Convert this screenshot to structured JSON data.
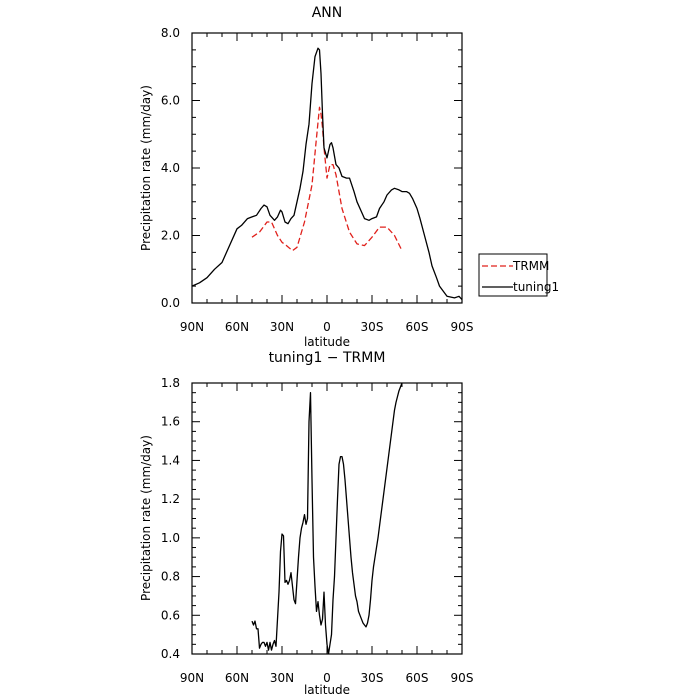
{
  "chart_data": [
    {
      "type": "line",
      "title": "ANN",
      "xlabel": "latitude",
      "ylabel": "Precipitation rate (mm/day)",
      "xlim": [
        90,
        -90
      ],
      "ylim": [
        0,
        8
      ],
      "xticks": [
        90,
        60,
        30,
        0,
        -30,
        -60,
        -90
      ],
      "xtick_labels": [
        "90N",
        "60N",
        "30N",
        "0",
        "30S",
        "60S",
        "90S"
      ],
      "yticks": [
        0,
        2,
        4,
        6,
        8
      ],
      "ytick_labels": [
        "0.0",
        "2.0",
        "4.0",
        "6.0",
        "8.0"
      ],
      "legend": "right",
      "series": [
        {
          "name": "TRMM",
          "color": "#e0201b",
          "dash": "dashed",
          "x": [
            50,
            45,
            40,
            37,
            33,
            30,
            27,
            23,
            20,
            15,
            10,
            7,
            5,
            4,
            3,
            2,
            0,
            -2,
            -4,
            -6,
            -10,
            -15,
            -20,
            -25,
            -30,
            -35,
            -40,
            -45,
            -50
          ],
          "y": [
            1.95,
            2.1,
            2.4,
            2.4,
            2.0,
            1.8,
            1.7,
            1.55,
            1.65,
            2.4,
            3.5,
            4.9,
            5.8,
            5.6,
            5.2,
            4.6,
            3.7,
            4.1,
            4.1,
            3.8,
            2.8,
            2.1,
            1.75,
            1.7,
            1.95,
            2.25,
            2.25,
            2.0,
            1.55
          ]
        },
        {
          "name": "tuning1",
          "color": "#000000",
          "dash": "solid",
          "x": [
            90,
            85,
            80,
            75,
            70,
            65,
            60,
            57,
            53,
            50,
            47,
            44,
            42,
            40,
            38,
            35,
            33,
            31,
            30,
            28,
            26,
            24,
            22,
            20,
            18,
            16,
            14,
            12,
            10,
            8,
            6,
            5,
            4,
            3,
            2,
            0,
            -2,
            -3,
            -4,
            -6,
            -8,
            -10,
            -13,
            -15,
            -18,
            -20,
            -23,
            -25,
            -28,
            -30,
            -33,
            -35,
            -38,
            -40,
            -43,
            -45,
            -48,
            -50,
            -53,
            -55,
            -57,
            -60,
            -62,
            -65,
            -68,
            -70,
            -73,
            -75,
            -80,
            -85,
            -88,
            -90
          ],
          "y": [
            0.5,
            0.6,
            0.75,
            1.0,
            1.2,
            1.7,
            2.2,
            2.3,
            2.5,
            2.55,
            2.6,
            2.8,
            2.9,
            2.85,
            2.6,
            2.45,
            2.55,
            2.75,
            2.7,
            2.4,
            2.35,
            2.5,
            2.6,
            3.0,
            3.4,
            3.9,
            4.7,
            5.3,
            6.5,
            7.3,
            7.55,
            7.5,
            6.8,
            5.6,
            4.6,
            4.3,
            4.7,
            4.75,
            4.6,
            4.1,
            4.0,
            3.75,
            3.7,
            3.7,
            3.3,
            3.0,
            2.7,
            2.5,
            2.45,
            2.5,
            2.55,
            2.8,
            3.0,
            3.2,
            3.35,
            3.4,
            3.35,
            3.3,
            3.3,
            3.25,
            3.1,
            2.8,
            2.5,
            2.0,
            1.5,
            1.1,
            0.75,
            0.5,
            0.2,
            0.15,
            0.2,
            0.1
          ]
        }
      ]
    },
    {
      "type": "line",
      "title": "tuning1 − TRMM",
      "xlabel": "latitude",
      "ylabel": "Precipitation rate (mm/day)",
      "xlim": [
        90,
        -90
      ],
      "ylim": [
        0.4,
        1.8
      ],
      "xticks": [
        90,
        60,
        30,
        0,
        -30,
        -60,
        -90
      ],
      "xtick_labels": [
        "90N",
        "60N",
        "30N",
        "0",
        "30S",
        "60S",
        "90S"
      ],
      "yticks": [
        0.4,
        0.6,
        0.8,
        1.0,
        1.2,
        1.4,
        1.6,
        1.8
      ],
      "ytick_labels": [
        "0.4",
        "0.6",
        "0.8",
        "1.0",
        "1.2",
        "1.4",
        "1.6",
        "1.8"
      ],
      "legend": "none",
      "series": [
        {
          "name": "tuning1 − TRMM",
          "color": "#000000",
          "dash": "solid",
          "x": [
            50,
            49,
            48,
            47,
            46,
            45,
            44,
            43,
            42,
            41,
            40,
            39,
            38,
            37,
            36,
            35,
            34,
            33,
            32,
            31,
            30,
            29,
            28,
            27,
            26,
            25,
            24,
            23,
            22,
            21,
            20,
            19,
            18,
            17,
            16,
            15,
            14,
            13,
            12,
            11,
            10,
            9,
            8,
            7,
            6,
            5,
            4,
            3,
            2,
            1,
            0,
            -1,
            -2,
            -3,
            -4,
            -5,
            -6,
            -7,
            -8,
            -9,
            -10,
            -11,
            -12,
            -13,
            -14,
            -15,
            -16,
            -17,
            -18,
            -19,
            -20,
            -21,
            -22,
            -23,
            -24,
            -25,
            -26,
            -27,
            -28,
            -29,
            -30,
            -31,
            -32,
            -33,
            -34,
            -35,
            -36,
            -37,
            -38,
            -39,
            -40,
            -41,
            -42,
            -43,
            -44,
            -45,
            -46,
            -47,
            -48,
            -49,
            -50
          ],
          "y": [
            0.57,
            0.55,
            0.57,
            0.53,
            0.53,
            0.43,
            0.45,
            0.46,
            0.46,
            0.44,
            0.46,
            0.42,
            0.46,
            0.42,
            0.45,
            0.47,
            0.44,
            0.58,
            0.72,
            0.93,
            1.02,
            1.01,
            0.77,
            0.78,
            0.76,
            0.78,
            0.82,
            0.75,
            0.68,
            0.66,
            0.78,
            0.9,
            1.0,
            1.05,
            1.08,
            1.12,
            1.07,
            1.1,
            1.6,
            1.75,
            1.3,
            0.9,
            0.75,
            0.62,
            0.67,
            0.6,
            0.55,
            0.58,
            0.72,
            0.55,
            0.45,
            0.4,
            0.45,
            0.5,
            0.68,
            0.8,
            1.0,
            1.2,
            1.38,
            1.42,
            1.42,
            1.38,
            1.3,
            1.2,
            1.1,
            1.0,
            0.9,
            0.82,
            0.76,
            0.7,
            0.67,
            0.62,
            0.6,
            0.58,
            0.56,
            0.55,
            0.54,
            0.56,
            0.6,
            0.68,
            0.78,
            0.85,
            0.9,
            0.95,
            1.0,
            1.06,
            1.12,
            1.18,
            1.24,
            1.3,
            1.36,
            1.42,
            1.48,
            1.54,
            1.6,
            1.66,
            1.7,
            1.73,
            1.76,
            1.78,
            1.8
          ]
        }
      ]
    }
  ]
}
